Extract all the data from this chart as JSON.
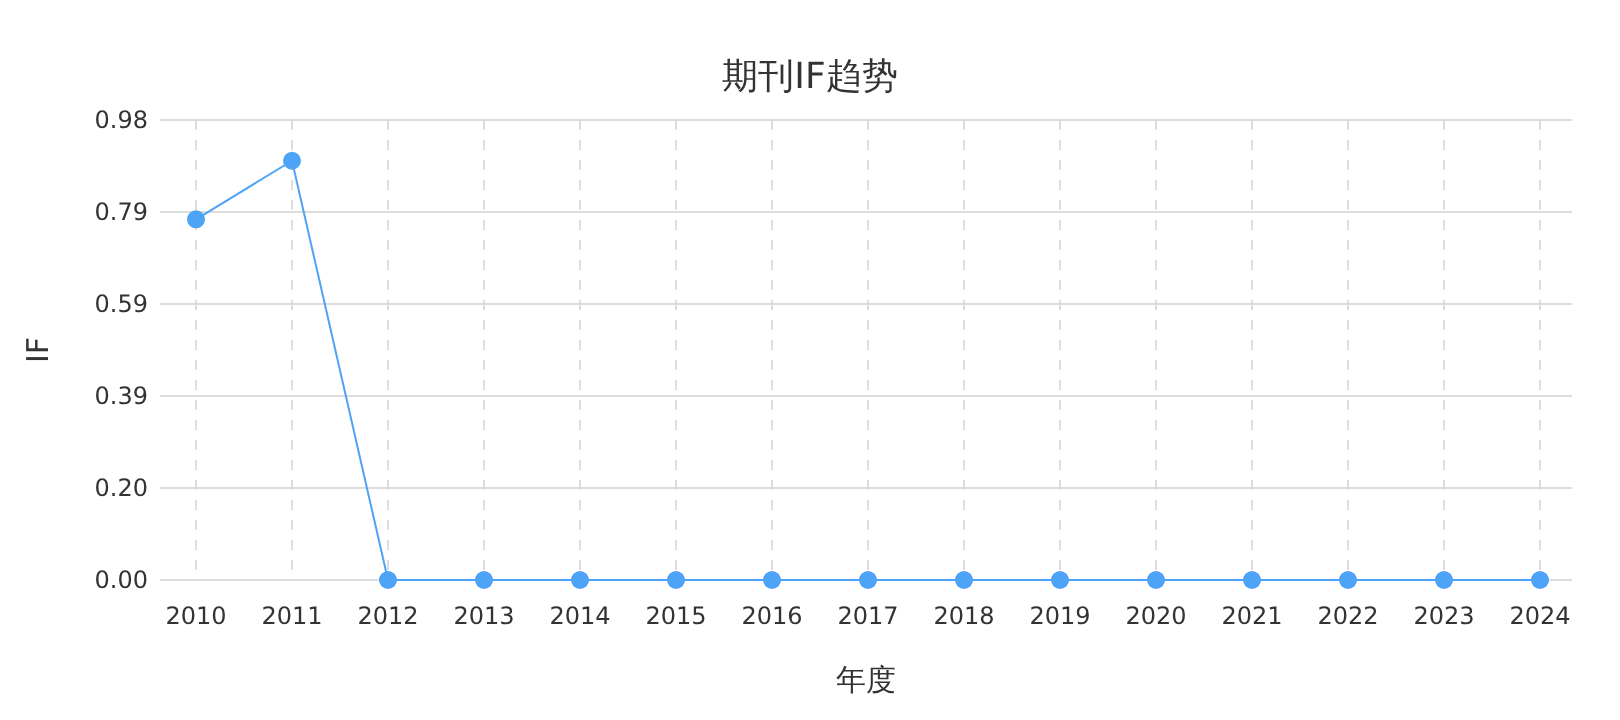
{
  "chart_data": {
    "type": "line",
    "title": "期刊IF趋势",
    "xlabel": "年度",
    "ylabel": "IF",
    "categories": [
      "2010",
      "2011",
      "2012",
      "2013",
      "2014",
      "2015",
      "2016",
      "2017",
      "2018",
      "2019",
      "2020",
      "2021",
      "2022",
      "2023",
      "2024"
    ],
    "series": [
      {
        "color": "#4da3f5",
        "values": [
          0.77,
          0.895,
          0,
          0,
          0,
          0,
          0,
          0,
          0,
          0,
          0,
          0,
          0,
          0,
          0
        ]
      }
    ],
    "ylim": [
      0,
      0.982
    ],
    "yticks": [
      {
        "value": 0,
        "label": "0.00"
      },
      {
        "value": 0.1964,
        "label": "0.20"
      },
      {
        "value": 0.3928,
        "label": "0.39"
      },
      {
        "value": 0.5892,
        "label": "0.59"
      },
      {
        "value": 0.7856,
        "label": "0.79"
      },
      {
        "value": 0.982,
        "label": "0.98"
      }
    ],
    "grid": true,
    "marker": "circle",
    "line_style": "solid"
  }
}
